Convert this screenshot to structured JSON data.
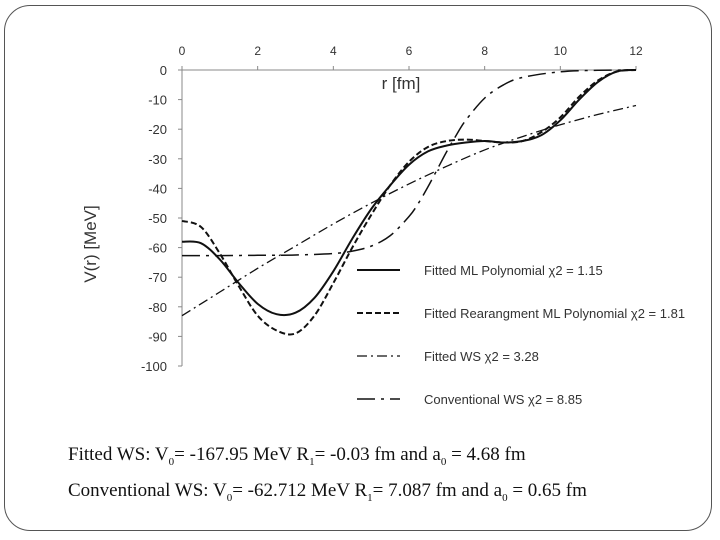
{
  "chart_data": {
    "type": "line",
    "title": "",
    "xlabel": "r [fm]",
    "ylabel": "V(r) [MeV]",
    "xlim": [
      0,
      12
    ],
    "ylim": [
      -100,
      0
    ],
    "x_ticks": [
      "0",
      "2",
      "4",
      "6",
      "8",
      "10",
      "12"
    ],
    "y_ticks": [
      "0",
      "-10",
      "-20",
      "-30",
      "-40",
      "-50",
      "-60",
      "-70",
      "-80",
      "-90",
      "-100"
    ],
    "x_axis_position": "top",
    "grid": false,
    "legend_position": "bottom-right",
    "series": [
      {
        "name": "Fitted ML Polynomial χ2 = 1.15",
        "style": "solid",
        "x": [
          0,
          0.5,
          1,
          1.5,
          2,
          2.5,
          3,
          3.5,
          4,
          4.5,
          5,
          5.5,
          6,
          6.5,
          7,
          7.5,
          8,
          8.5,
          9,
          9.5,
          10,
          10.5,
          11,
          11.5,
          12
        ],
        "y": [
          -58,
          -58.5,
          -64,
          -72,
          -79,
          -82.5,
          -82,
          -77,
          -68,
          -57,
          -47,
          -39,
          -32,
          -27.5,
          -25.5,
          -24.5,
          -24,
          -24.5,
          -24,
          -22,
          -17,
          -10,
          -4,
          -0.5,
          0
        ]
      },
      {
        "name": "Fitted Rearangment ML Polynomial χ2 = 1.81",
        "style": "dashed",
        "x": [
          0,
          0.5,
          1,
          1.5,
          2,
          2.5,
          3,
          3.5,
          4,
          4.5,
          5,
          5.5,
          6,
          6.5,
          7,
          7.5,
          8,
          8.5,
          9,
          9.5,
          10,
          10.5,
          11,
          11.5,
          12
        ],
        "y": [
          -51,
          -53,
          -62,
          -73,
          -83,
          -88,
          -89,
          -83,
          -72,
          -60,
          -49,
          -39,
          -31,
          -26,
          -24,
          -23.5,
          -24,
          -24.5,
          -24,
          -21,
          -16,
          -9,
          -3.5,
          -0.5,
          0
        ]
      },
      {
        "name": "Fitted WS χ2 = 3.28",
        "style": "dash-dot",
        "x": [
          0,
          1,
          2,
          3,
          4,
          5,
          6,
          7,
          8,
          9,
          10,
          11,
          12
        ],
        "y": [
          -83,
          -75,
          -67,
          -59.5,
          -52,
          -45,
          -38.5,
          -32.5,
          -27,
          -22.5,
          -18.5,
          -15,
          -12
        ]
      },
      {
        "name": "Conventional WS χ2 = 8.85",
        "style": "long-dash-dot",
        "x": [
          0,
          1,
          2,
          3,
          4,
          4.5,
          5,
          5.5,
          6,
          6.25,
          6.5,
          6.75,
          7,
          7.25,
          7.5,
          8,
          8.5,
          9,
          10,
          11,
          12
        ],
        "y": [
          -62.7,
          -62.7,
          -62.6,
          -62.5,
          -62,
          -61.2,
          -59.5,
          -56,
          -49.5,
          -45,
          -39.5,
          -33.5,
          -27.5,
          -22,
          -17,
          -9.5,
          -5,
          -2.5,
          -0.6,
          -0.1,
          0
        ]
      }
    ]
  },
  "captions": {
    "fitted_ws": {
      "prefix": "Fitted WS: V",
      "v0_sub": "0",
      "v0_text": "= -167.95 MeV R",
      "r1_sub": "1",
      "r1_text": "= -0.03 fm and a",
      "a0_sub": "0",
      "a0_text": " = 4.68 fm"
    },
    "conventional_ws": {
      "prefix": "Conventional WS: V",
      "v0_sub": "0",
      "v0_text": "= -62.712 MeV R",
      "r1_sub": "1",
      "r1_text": "= 7.087 fm and a",
      "a0_sub": "0",
      "a0_text": " = 0.65 fm"
    }
  }
}
